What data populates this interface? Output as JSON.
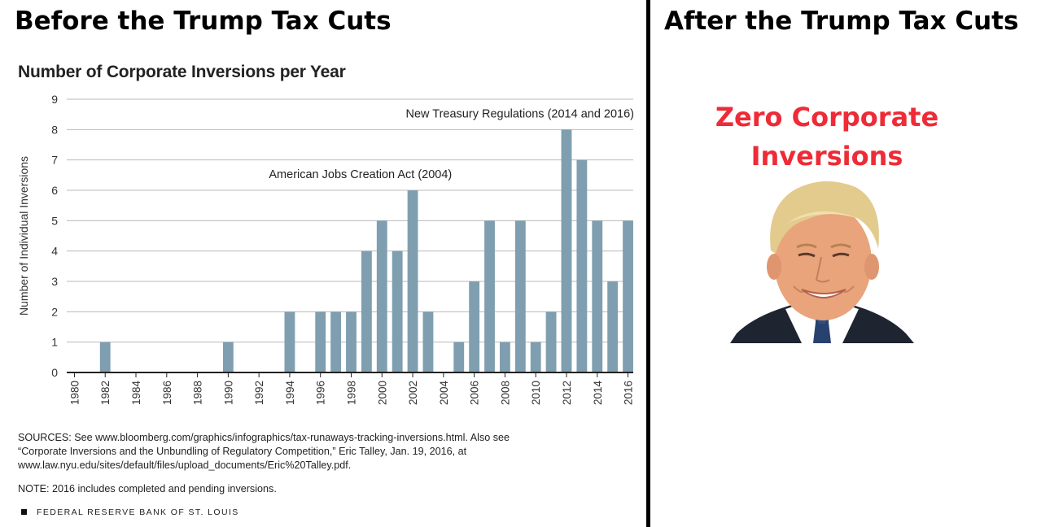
{
  "left_panel": {
    "heading": "Before the Trump Tax Cuts",
    "sources_lines": [
      "SOURCES: See www.bloomberg.com/graphics/infographics/tax-runaways-tracking-inversions.html. Also see",
      "“Corporate Inversions and the Unbundling of Regulatory Competition,” Eric Talley, Jan. 19, 2016, at",
      "www.law.nyu.edu/sites/default/files/upload_documents/Eric%20Talley.pdf."
    ],
    "note": "NOTE: 2016 includes completed and pending inversions.",
    "footer": "FEDERAL RESERVE BANK OF ST. LOUIS"
  },
  "right_panel": {
    "heading": "After the Trump Tax Cuts",
    "callout_line1": "Zero Corporate",
    "callout_line2": "Inversions",
    "portrait_icon": "smiling-man-portrait"
  },
  "colors": {
    "bar": "#7f9fb0",
    "callout": "#ee2b37",
    "grid": "#b9b9b9"
  },
  "chart_data": {
    "type": "bar",
    "title": "Number of Corporate Inversions per Year",
    "xlabel": "",
    "ylabel": "Number of Individual Inversions",
    "categories": [
      1980,
      1981,
      1982,
      1983,
      1984,
      1985,
      1986,
      1987,
      1988,
      1989,
      1990,
      1991,
      1992,
      1993,
      1994,
      1995,
      1996,
      1997,
      1998,
      1999,
      2000,
      2001,
      2002,
      2003,
      2004,
      2005,
      2006,
      2007,
      2008,
      2009,
      2010,
      2011,
      2012,
      2013,
      2014,
      2015,
      2016
    ],
    "values": [
      0,
      0,
      1,
      0,
      0,
      0,
      0,
      0,
      0,
      0,
      1,
      0,
      0,
      0,
      2,
      0,
      2,
      2,
      2,
      4,
      5,
      4,
      6,
      2,
      0,
      1,
      3,
      5,
      1,
      5,
      1,
      2,
      8,
      7,
      5,
      3,
      5
    ],
    "tick_labels": [
      "1980",
      "1982",
      "1984",
      "1986",
      "1988",
      "1990",
      "1992",
      "1994",
      "1996",
      "1998",
      "2000",
      "2002",
      "2004",
      "2006",
      "2008",
      "2010",
      "2012",
      "2014",
      "2016"
    ],
    "y_ticks": [
      0,
      1,
      2,
      3,
      4,
      5,
      6,
      7,
      8,
      9
    ],
    "ylim": [
      0,
      9
    ],
    "grid": "horizontal",
    "annotations": [
      {
        "text": "New Treasury Regulations (2014 and 2016)",
        "x": 2016,
        "y": 8.4
      },
      {
        "text": "American Jobs Creation Act (2004)",
        "x": 2004,
        "y": 6.4
      }
    ]
  }
}
